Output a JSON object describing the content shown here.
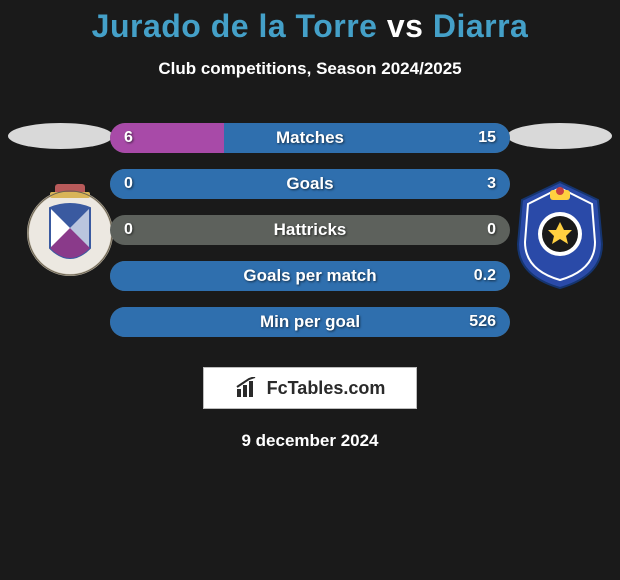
{
  "title": {
    "player1": "Jurado de la Torre",
    "vs": "vs",
    "player2": "Diarra",
    "color1": "#44a0c8",
    "color_vs": "#ffffff",
    "color2": "#44a0c8"
  },
  "subtitle": "Club competitions, Season 2024/2025",
  "rows": [
    {
      "label": "Matches",
      "left": "6",
      "right": "15",
      "left_pct": 28.6,
      "right_pct": 71.4
    },
    {
      "label": "Goals",
      "left": "0",
      "right": "3",
      "left_pct": 0,
      "right_pct": 100
    },
    {
      "label": "Hattricks",
      "left": "0",
      "right": "0",
      "left_pct": 0,
      "right_pct": 0
    },
    {
      "label": "Goals per match",
      "left": "",
      "right": "0.2",
      "left_pct": 0,
      "right_pct": 100
    },
    {
      "label": "Min per goal",
      "left": "",
      "right": "526",
      "left_pct": 0,
      "right_pct": 100
    }
  ],
  "bar_bg": "#5d615c",
  "bar_left_fill": "#a84aa8",
  "bar_right_fill": "#2f6fae",
  "logo_text": "FcTables.com",
  "date": "9 december 2024",
  "badge_left": {
    "bg": "#ece8e1",
    "accent1": "#8a3a8a",
    "accent2": "#3a5aa0",
    "label": "DEP"
  },
  "badge_right": {
    "bg": "#2a4aa8",
    "accent": "#ffd040",
    "label": "CDT"
  }
}
